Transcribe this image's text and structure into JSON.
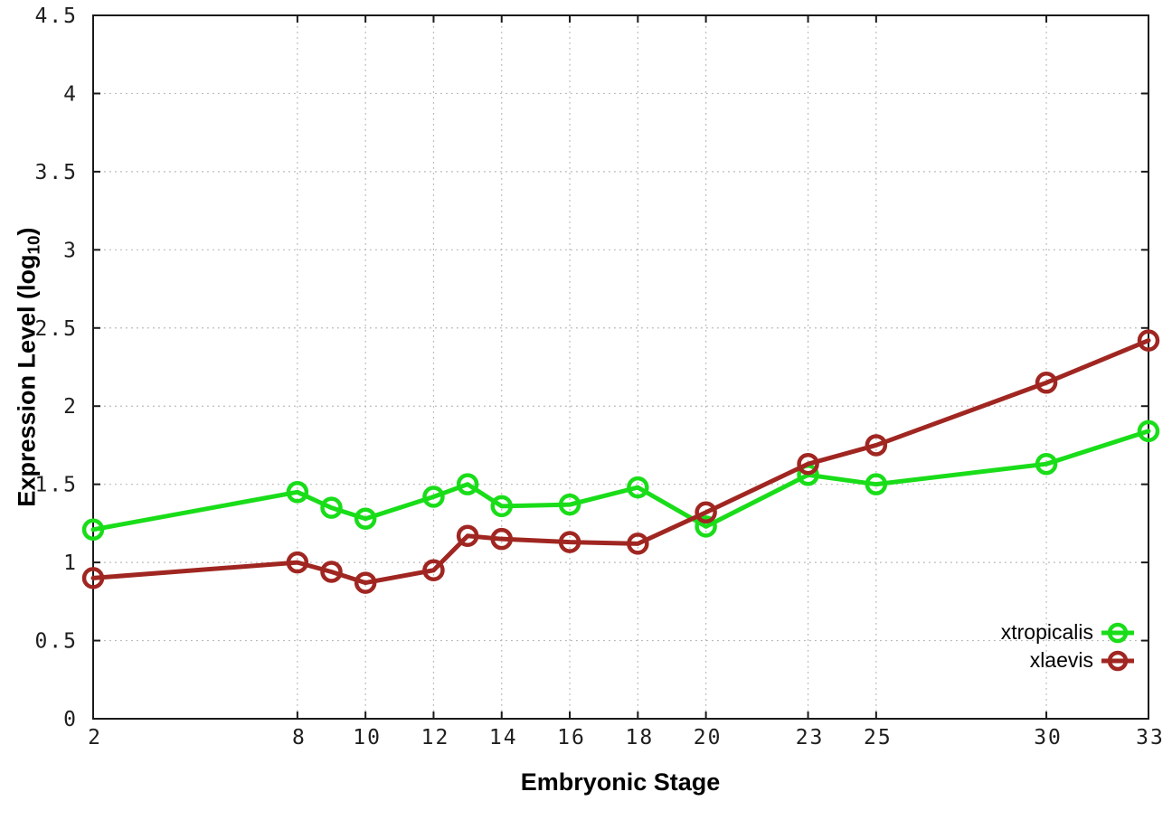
{
  "background": "#ffffff",
  "chart_data": {
    "type": "line",
    "title": "",
    "xlabel": "Embryonic Stage",
    "ylabel": "Expression Level (log10)",
    "ylabel_parts": {
      "pre": "Expression Level (log",
      "sub": "10",
      "post": ")"
    },
    "xlim": [
      2,
      33
    ],
    "ylim": [
      0,
      4.5
    ],
    "grid": true,
    "legend_position": "inside-right",
    "xticks": {
      "values": [
        2,
        8,
        10,
        12,
        14,
        16,
        18,
        20,
        23,
        25,
        30,
        33
      ],
      "labels": [
        "2",
        "8",
        "10",
        "12",
        "14",
        "16",
        "18",
        "20",
        "23",
        "25",
        "30",
        "33"
      ]
    },
    "yticks": {
      "values": [
        0,
        0.5,
        1,
        1.5,
        2,
        2.5,
        3,
        3.5,
        4,
        4.5
      ],
      "labels": [
        "0",
        "0.5",
        "1",
        "1.5",
        "2",
        "2.5",
        "3",
        "3.5",
        "4",
        "4.5"
      ]
    },
    "x": [
      2,
      8,
      9,
      10,
      12,
      13,
      14,
      16,
      18,
      20,
      23,
      25,
      30,
      33
    ],
    "series": [
      {
        "name": "xtropicalis",
        "color": "#19dd19",
        "values": [
          1.21,
          1.45,
          1.35,
          1.28,
          1.42,
          1.5,
          1.36,
          1.37,
          1.48,
          1.23,
          1.56,
          1.5,
          1.63,
          1.84
        ]
      },
      {
        "name": "xlaevis",
        "color": "#a02621",
        "values": [
          0.9,
          1.0,
          0.94,
          0.87,
          0.95,
          1.17,
          1.15,
          1.13,
          1.12,
          1.32,
          1.63,
          1.75,
          2.15,
          2.42
        ]
      }
    ],
    "colors": {
      "axis": "#1a1a1a",
      "grid": "#b5b5b5",
      "tick_text": "#1f1f1f"
    }
  }
}
